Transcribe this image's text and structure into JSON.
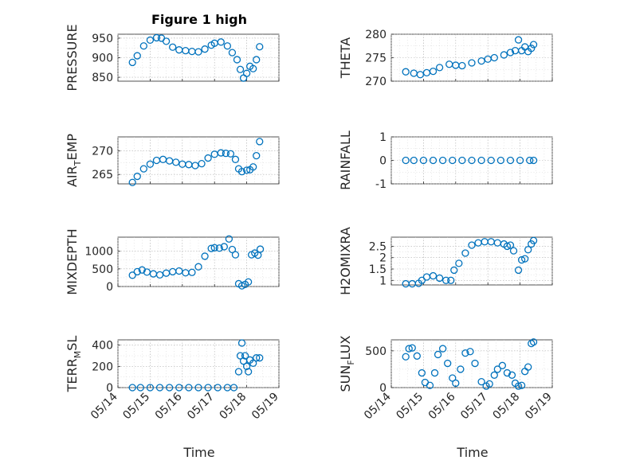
{
  "figure": {
    "title": "Figure 1 high"
  },
  "chart_data": [
    {
      "type": "scatter",
      "ylabel": "PRESSURE",
      "ylabel_sub": "",
      "title": "Figure 1 high",
      "ylim": [
        840,
        960
      ],
      "yticks": [
        850,
        900,
        950
      ],
      "ytick_labels": [
        "850",
        "900",
        "950"
      ],
      "x": [
        14.45,
        14.6,
        14.8,
        15.0,
        15.2,
        15.35,
        15.5,
        15.7,
        15.9,
        16.1,
        16.3,
        16.5,
        16.7,
        16.9,
        17.0,
        17.2,
        17.4,
        17.55,
        17.7,
        17.8,
        17.9,
        18.0,
        18.1,
        18.2,
        18.3,
        18.4
      ],
      "values": [
        888,
        905,
        930,
        945,
        951,
        950,
        942,
        927,
        920,
        918,
        916,
        915,
        922,
        932,
        937,
        940,
        930,
        913,
        895,
        870,
        848,
        860,
        878,
        872,
        895,
        928
      ]
    },
    {
      "type": "scatter",
      "ylabel": "THETA",
      "ylabel_sub": "",
      "ylim": [
        270,
        280
      ],
      "yticks": [
        270,
        275,
        280
      ],
      "ytick_labels": [
        "270",
        "275",
        "280"
      ],
      "x": [
        14.45,
        14.7,
        14.9,
        15.1,
        15.3,
        15.5,
        15.8,
        16.0,
        16.2,
        16.5,
        16.8,
        17.0,
        17.2,
        17.5,
        17.7,
        17.85,
        17.95,
        18.05,
        18.15,
        18.25,
        18.35,
        18.42
      ],
      "values": [
        272,
        271.7,
        271.4,
        271.8,
        272.1,
        272.9,
        273.6,
        273.4,
        273.3,
        273.9,
        274.3,
        274.7,
        275.0,
        275.6,
        276.1,
        276.5,
        278.8,
        276.5,
        277.3,
        276.3,
        277.0,
        277.8
      ]
    },
    {
      "type": "scatter",
      "ylabel": "AIR",
      "ylabel_sub": "T",
      "ylabel_tail": "EMP",
      "ylim": [
        263,
        273
      ],
      "yticks": [
        265,
        270
      ],
      "ytick_labels": [
        "265",
        "270"
      ],
      "x": [
        14.45,
        14.6,
        14.8,
        15.0,
        15.2,
        15.4,
        15.6,
        15.8,
        16.0,
        16.2,
        16.4,
        16.6,
        16.8,
        17.0,
        17.2,
        17.35,
        17.5,
        17.65,
        17.75,
        17.85,
        18.0,
        18.1,
        18.2,
        18.3,
        18.4
      ],
      "values": [
        263.3,
        264.6,
        266.2,
        267.2,
        268.0,
        268.2,
        267.9,
        267.6,
        267.2,
        267.1,
        266.9,
        267.3,
        268.5,
        269.3,
        269.6,
        269.5,
        269.4,
        268.2,
        266.2,
        265.6,
        265.9,
        266.0,
        266.6,
        269.0,
        272.0
      ]
    },
    {
      "type": "scatter",
      "ylabel": "RAINFALL",
      "ylabel_sub": "",
      "ylim": [
        -1,
        1
      ],
      "yticks": [
        -1,
        0,
        1
      ],
      "ytick_labels": [
        "-1",
        "0",
        "1"
      ],
      "x": [
        14.45,
        14.7,
        15.0,
        15.3,
        15.6,
        15.9,
        16.2,
        16.5,
        16.8,
        17.1,
        17.4,
        17.7,
        18.0,
        18.3,
        18.42
      ],
      "values": [
        0,
        0,
        0,
        0,
        0,
        0,
        0,
        0,
        0,
        0,
        0,
        0,
        0,
        0,
        0
      ]
    },
    {
      "type": "scatter",
      "ylabel": "MIXDEPTH",
      "ylabel_sub": "",
      "ylim": [
        0,
        1400
      ],
      "yticks": [
        0,
        500,
        1000
      ],
      "ytick_labels": [
        "0",
        "500",
        "1000"
      ],
      "x": [
        14.45,
        14.6,
        14.75,
        14.9,
        15.1,
        15.3,
        15.5,
        15.7,
        15.9,
        16.1,
        16.3,
        16.5,
        16.7,
        16.9,
        17.0,
        17.15,
        17.3,
        17.45,
        17.55,
        17.65,
        17.75,
        17.85,
        17.95,
        18.05,
        18.15,
        18.25,
        18.35,
        18.42
      ],
      "values": [
        320,
        420,
        470,
        410,
        360,
        330,
        380,
        420,
        440,
        390,
        400,
        560,
        860,
        1080,
        1100,
        1090,
        1130,
        1350,
        1050,
        900,
        80,
        20,
        60,
        130,
        900,
        950,
        890,
        1060
      ]
    },
    {
      "type": "scatter",
      "ylabel": "H2OMIXRA",
      "ylabel_sub": "",
      "ylim": [
        0.8,
        2.9
      ],
      "yticks": [
        1,
        1.5,
        2,
        2.5
      ],
      "ytick_labels": [
        "1",
        "1.5",
        "2",
        "2.5"
      ],
      "x": [
        14.45,
        14.65,
        14.85,
        14.95,
        15.1,
        15.3,
        15.5,
        15.7,
        15.85,
        15.95,
        16.1,
        16.3,
        16.5,
        16.7,
        16.9,
        17.1,
        17.3,
        17.5,
        17.6,
        17.7,
        17.8,
        17.95,
        18.05,
        18.15,
        18.25,
        18.35,
        18.42
      ],
      "values": [
        0.85,
        0.85,
        0.87,
        1.0,
        1.15,
        1.2,
        1.1,
        1.0,
        1.0,
        1.45,
        1.75,
        2.2,
        2.55,
        2.65,
        2.7,
        2.7,
        2.65,
        2.6,
        2.5,
        2.55,
        2.3,
        1.45,
        1.9,
        1.95,
        2.35,
        2.6,
        2.75
      ]
    },
    {
      "type": "scatter",
      "ylabel": "TERR",
      "ylabel_sub": "M",
      "ylabel_tail": "SL",
      "ylim": [
        0,
        450
      ],
      "yticks": [
        0,
        200,
        400
      ],
      "ytick_labels": [
        "0",
        "200",
        "400"
      ],
      "x": [
        14.45,
        14.7,
        15.0,
        15.3,
        15.6,
        15.9,
        16.2,
        16.5,
        16.8,
        17.1,
        17.4,
        17.6,
        17.75,
        17.8,
        17.85,
        17.9,
        17.95,
        18.0,
        18.05,
        18.1,
        18.2,
        18.3,
        18.4
      ],
      "values": [
        0,
        0,
        0,
        0,
        0,
        0,
        0,
        0,
        0,
        0,
        0,
        0,
        150,
        300,
        420,
        250,
        300,
        200,
        150,
        260,
        230,
        280,
        280
      ]
    },
    {
      "type": "scatter",
      "ylabel": "SUN",
      "ylabel_sub": "F",
      "ylabel_tail": "LUX",
      "ylim": [
        0,
        650
      ],
      "yticks": [
        0,
        500
      ],
      "ytick_labels": [
        "0",
        "500"
      ],
      "x": [
        14.45,
        14.55,
        14.65,
        14.8,
        14.95,
        15.05,
        15.2,
        15.35,
        15.45,
        15.6,
        15.75,
        15.9,
        16.0,
        16.15,
        16.3,
        16.45,
        16.6,
        16.8,
        16.95,
        17.05,
        17.2,
        17.3,
        17.45,
        17.6,
        17.75,
        17.85,
        17.95,
        18.05,
        18.15,
        18.25,
        18.35,
        18.42
      ],
      "values": [
        420,
        530,
        540,
        430,
        200,
        70,
        30,
        200,
        450,
        530,
        330,
        130,
        60,
        250,
        470,
        490,
        330,
        80,
        20,
        50,
        170,
        250,
        300,
        200,
        170,
        60,
        20,
        30,
        220,
        280,
        600,
        620
      ]
    }
  ],
  "x_axis": {
    "xlim": [
      14.0,
      19.0
    ],
    "ticks": [
      14,
      15,
      16,
      17,
      18,
      19
    ],
    "tick_labels": [
      "05/14",
      "05/15",
      "05/16",
      "05/17",
      "05/18",
      "05/19"
    ],
    "xlabel": "Time"
  },
  "colors": {
    "marker": "#0072BD",
    "axis": "#262626",
    "grid": "#b0b0b0"
  }
}
